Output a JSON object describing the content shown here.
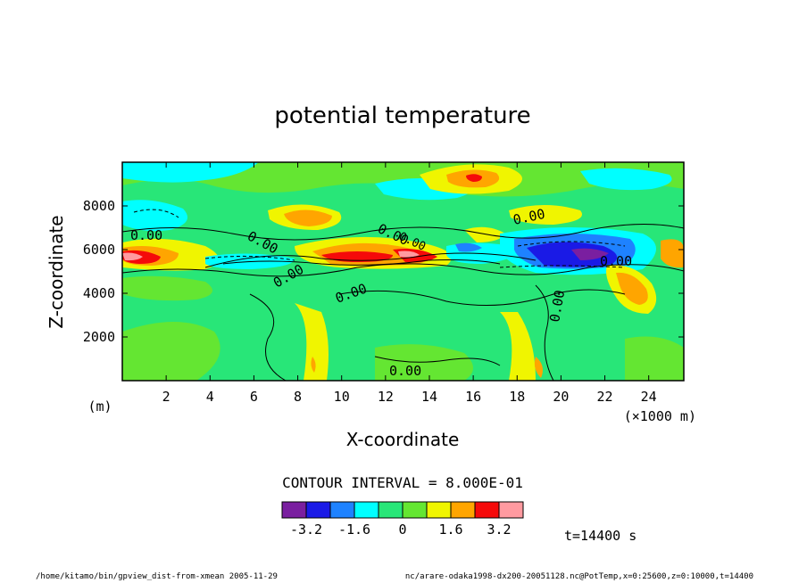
{
  "chart_data": {
    "type": "heatmap",
    "title": "potential temperature",
    "xlabel": "X-coordinate",
    "ylabel": "Z-coordinate",
    "x_unit_label": "(×1000 m)",
    "y_unit_label": "(m)",
    "xlim": [
      0,
      25600
    ],
    "ylim": [
      0,
      10000
    ],
    "x_ticks": [
      2,
      4,
      6,
      8,
      10,
      12,
      14,
      16,
      18,
      20,
      22,
      24
    ],
    "y_ticks": [
      2000,
      4000,
      6000,
      8000
    ],
    "contour_interval_label": "CONTOUR INTERVAL = 8.000E-01",
    "colorbar": {
      "levels": [
        -4.0,
        -3.2,
        -2.4,
        -1.6,
        -0.8,
        0,
        0.8,
        1.6,
        2.4,
        3.2,
        4.0
      ],
      "colors": [
        "#7a1fa0",
        "#1a1ae6",
        "#1e82ff",
        "#00ffff",
        "#28e678",
        "#64e632",
        "#f0f500",
        "#ffa500",
        "#f50a0a",
        "#ff9aa0"
      ],
      "tick_labels": [
        "-3.2",
        "-1.6",
        "0",
        "1.6",
        "3.2"
      ]
    },
    "contour_labels": [
      "0.00",
      "0.00",
      "0.00",
      "0.00",
      "0.00",
      "0.00",
      "0.00",
      "0.00",
      "0.00",
      "0.00"
    ],
    "time_label": "t=14400 s"
  },
  "footer": {
    "left": "/home/kitamo/bin/gpview_dist-from-xmean  2005-11-29",
    "right": "nc/arare-odaka1998-dx200-20051128.nc@PotTemp,x=0:25600,z=0:10000,t=14400"
  }
}
